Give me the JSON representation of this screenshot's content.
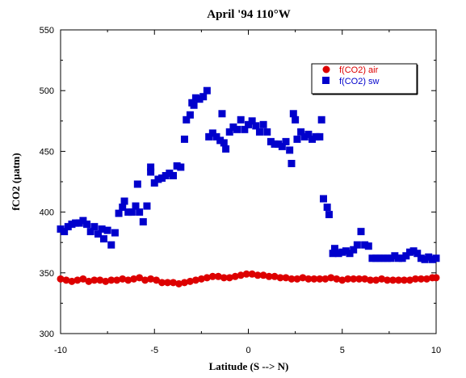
{
  "chart_data": {
    "type": "scatter",
    "title": "April '94 110°W",
    "xlabel": "Latitude (S --> N)",
    "ylabel": "fCO2 (µatm)",
    "xlim": [
      -10,
      10
    ],
    "ylim": [
      300,
      550
    ],
    "xticks": [
      "-10",
      "-5",
      "0",
      "5",
      "10"
    ],
    "yticks": [
      "300",
      "350",
      "400",
      "450",
      "500",
      "550"
    ],
    "grid": false,
    "legend_position": "top-right",
    "series": [
      {
        "name": "f(CO2) air",
        "marker": "circle",
        "color": "#dd0000",
        "points": [
          [
            -10.0,
            345
          ],
          [
            -9.7,
            344
          ],
          [
            -9.4,
            343
          ],
          [
            -9.1,
            344
          ],
          [
            -8.8,
            345
          ],
          [
            -8.5,
            343
          ],
          [
            -8.2,
            344
          ],
          [
            -7.9,
            344
          ],
          [
            -7.6,
            343
          ],
          [
            -7.3,
            344
          ],
          [
            -7.0,
            344
          ],
          [
            -6.7,
            345
          ],
          [
            -6.4,
            344
          ],
          [
            -6.1,
            345
          ],
          [
            -5.8,
            346
          ],
          [
            -5.5,
            344
          ],
          [
            -5.2,
            345
          ],
          [
            -4.9,
            344
          ],
          [
            -4.6,
            342
          ],
          [
            -4.3,
            342
          ],
          [
            -4.0,
            342
          ],
          [
            -3.7,
            341
          ],
          [
            -3.4,
            342
          ],
          [
            -3.1,
            343
          ],
          [
            -2.8,
            344
          ],
          [
            -2.5,
            345
          ],
          [
            -2.2,
            346
          ],
          [
            -1.9,
            347
          ],
          [
            -1.6,
            347
          ],
          [
            -1.3,
            346
          ],
          [
            -1.0,
            346
          ],
          [
            -0.7,
            347
          ],
          [
            -0.4,
            348
          ],
          [
            -0.1,
            349
          ],
          [
            0.2,
            349
          ],
          [
            0.5,
            348
          ],
          [
            0.8,
            348
          ],
          [
            1.1,
            347
          ],
          [
            1.4,
            347
          ],
          [
            1.7,
            346
          ],
          [
            2.0,
            346
          ],
          [
            2.3,
            345
          ],
          [
            2.6,
            345
          ],
          [
            2.9,
            346
          ],
          [
            3.2,
            345
          ],
          [
            3.5,
            345
          ],
          [
            3.8,
            345
          ],
          [
            4.1,
            345
          ],
          [
            4.4,
            346
          ],
          [
            4.7,
            345
          ],
          [
            5.0,
            344
          ],
          [
            5.3,
            345
          ],
          [
            5.6,
            345
          ],
          [
            5.9,
            345
          ],
          [
            6.2,
            345
          ],
          [
            6.5,
            344
          ],
          [
            6.8,
            344
          ],
          [
            7.1,
            345
          ],
          [
            7.4,
            344
          ],
          [
            7.7,
            344
          ],
          [
            8.0,
            344
          ],
          [
            8.3,
            344
          ],
          [
            8.6,
            344
          ],
          [
            8.9,
            345
          ],
          [
            9.2,
            345
          ],
          [
            9.5,
            345
          ],
          [
            9.8,
            346
          ],
          [
            10.0,
            346
          ]
        ]
      },
      {
        "name": "f(CO2) sw",
        "marker": "square",
        "color": "#0000cc",
        "points": [
          [
            -10.0,
            386
          ],
          [
            -9.8,
            384
          ],
          [
            -9.6,
            388
          ],
          [
            -9.4,
            390
          ],
          [
            -9.2,
            391
          ],
          [
            -9.0,
            391
          ],
          [
            -8.8,
            393
          ],
          [
            -8.6,
            390
          ],
          [
            -8.4,
            384
          ],
          [
            -8.2,
            388
          ],
          [
            -8.0,
            382
          ],
          [
            -7.8,
            386
          ],
          [
            -7.7,
            378
          ],
          [
            -7.5,
            385
          ],
          [
            -7.3,
            373
          ],
          [
            -7.1,
            383
          ],
          [
            -6.9,
            399
          ],
          [
            -6.7,
            404
          ],
          [
            -6.6,
            409
          ],
          [
            -6.4,
            400
          ],
          [
            -6.2,
            400
          ],
          [
            -6.0,
            405
          ],
          [
            -5.9,
            423
          ],
          [
            -5.8,
            400
          ],
          [
            -5.6,
            392
          ],
          [
            -5.4,
            405
          ],
          [
            -5.2,
            433
          ],
          [
            -5.2,
            437
          ],
          [
            -5.0,
            424
          ],
          [
            -4.8,
            427
          ],
          [
            -4.6,
            428
          ],
          [
            -4.4,
            430
          ],
          [
            -4.2,
            432
          ],
          [
            -4.0,
            430
          ],
          [
            -3.8,
            438
          ],
          [
            -3.6,
            437
          ],
          [
            -3.4,
            460
          ],
          [
            -3.3,
            476
          ],
          [
            -3.1,
            480
          ],
          [
            -3.0,
            490
          ],
          [
            -2.9,
            488
          ],
          [
            -2.8,
            494
          ],
          [
            -2.6,
            493
          ],
          [
            -2.4,
            495
          ],
          [
            -2.2,
            500
          ],
          [
            -2.1,
            462
          ],
          [
            -1.9,
            465
          ],
          [
            -1.7,
            462
          ],
          [
            -1.5,
            459
          ],
          [
            -1.4,
            481
          ],
          [
            -1.3,
            457
          ],
          [
            -1.2,
            452
          ],
          [
            -1.0,
            466
          ],
          [
            -0.8,
            470
          ],
          [
            -0.6,
            468
          ],
          [
            -0.4,
            476
          ],
          [
            -0.2,
            468
          ],
          [
            0.0,
            472
          ],
          [
            0.2,
            475
          ],
          [
            0.4,
            471
          ],
          [
            0.6,
            466
          ],
          [
            0.8,
            472
          ],
          [
            1.0,
            466
          ],
          [
            1.2,
            458
          ],
          [
            1.4,
            456
          ],
          [
            1.6,
            456
          ],
          [
            1.8,
            454
          ],
          [
            2.0,
            458
          ],
          [
            2.2,
            451
          ],
          [
            2.3,
            440
          ],
          [
            2.4,
            481
          ],
          [
            2.5,
            476
          ],
          [
            2.6,
            460
          ],
          [
            2.8,
            466
          ],
          [
            3.0,
            462
          ],
          [
            3.2,
            464
          ],
          [
            3.4,
            460
          ],
          [
            3.6,
            462
          ],
          [
            3.8,
            462
          ],
          [
            3.9,
            476
          ],
          [
            4.0,
            411
          ],
          [
            4.2,
            404
          ],
          [
            4.3,
            398
          ],
          [
            4.5,
            366
          ],
          [
            4.6,
            370
          ],
          [
            4.8,
            366
          ],
          [
            5.0,
            367
          ],
          [
            5.2,
            368
          ],
          [
            5.4,
            366
          ],
          [
            5.6,
            369
          ],
          [
            5.8,
            373
          ],
          [
            6.0,
            384
          ],
          [
            6.2,
            373
          ],
          [
            6.4,
            372
          ],
          [
            6.6,
            362
          ],
          [
            6.8,
            362
          ],
          [
            7.0,
            362
          ],
          [
            7.2,
            362
          ],
          [
            7.4,
            362
          ],
          [
            7.6,
            362
          ],
          [
            7.8,
            364
          ],
          [
            8.0,
            362
          ],
          [
            8.2,
            362
          ],
          [
            8.4,
            364
          ],
          [
            8.6,
            367
          ],
          [
            8.8,
            368
          ],
          [
            9.0,
            366
          ],
          [
            9.2,
            362
          ],
          [
            9.4,
            361
          ],
          [
            9.6,
            363
          ],
          [
            9.8,
            361
          ],
          [
            10.0,
            362
          ]
        ]
      }
    ]
  }
}
